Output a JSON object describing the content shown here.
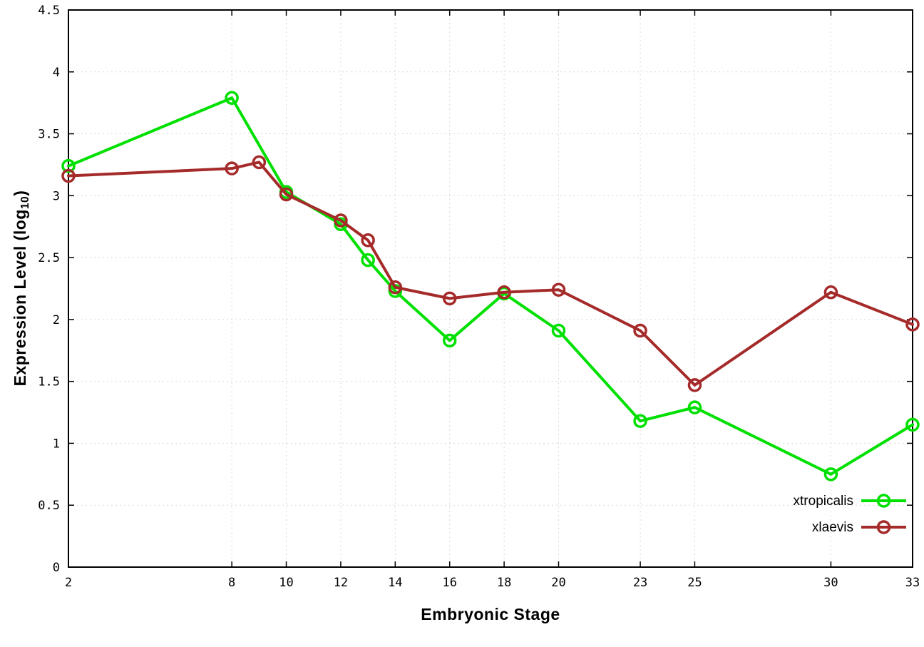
{
  "chart_data": {
    "type": "line",
    "title": "",
    "xlabel": "Embryonic Stage",
    "ylabel": "Expression Level (log10)",
    "ylabel_parts": {
      "prefix": "Expression Level (log",
      "sub": "10",
      "suffix": ")"
    },
    "xlim": [
      2,
      33
    ],
    "ylim": [
      0,
      4.5
    ],
    "xticks": [
      2,
      8,
      10,
      12,
      14,
      16,
      18,
      20,
      23,
      25,
      30,
      33
    ],
    "yticks": [
      0,
      0.5,
      1,
      1.5,
      2,
      2.5,
      3,
      3.5,
      4,
      4.5
    ],
    "grid": true,
    "legend_position": "inside-bottom-right",
    "background_color": "#ffffff",
    "grid_color": "#d9d9d9",
    "axis_color": "#000000",
    "series": [
      {
        "name": "xtropicalis",
        "color": "#00e000",
        "marker": "open-circle",
        "points": [
          [
            2,
            3.24
          ],
          [
            8,
            3.79
          ],
          [
            10,
            3.03
          ],
          [
            12,
            2.77
          ],
          [
            13,
            2.48
          ],
          [
            14,
            2.23
          ],
          [
            16,
            1.83
          ],
          [
            18,
            2.21
          ],
          [
            20,
            1.91
          ],
          [
            23,
            1.18
          ],
          [
            25,
            1.29
          ],
          [
            30,
            0.75
          ],
          [
            33,
            1.15
          ]
        ]
      },
      {
        "name": "xlaevis",
        "color": "#a52a2a",
        "marker": "open-circle",
        "points": [
          [
            2,
            3.16
          ],
          [
            8,
            3.22
          ],
          [
            9,
            3.27
          ],
          [
            10,
            3.01
          ],
          [
            12,
            2.8
          ],
          [
            13,
            2.64
          ],
          [
            14,
            2.26
          ],
          [
            16,
            2.17
          ],
          [
            18,
            2.22
          ],
          [
            20,
            2.24
          ],
          [
            23,
            1.91
          ],
          [
            25,
            1.47
          ],
          [
            30,
            2.22
          ],
          [
            33,
            1.96
          ]
        ]
      }
    ]
  }
}
